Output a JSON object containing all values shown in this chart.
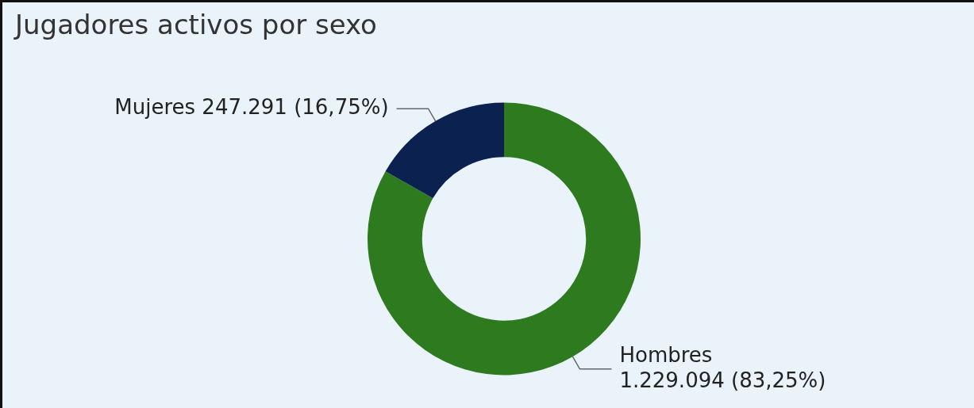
{
  "chart_data": {
    "type": "donut",
    "title": "Jugadores activos por sexo",
    "categories": [
      "Hombres",
      "Mujeres"
    ],
    "values": [
      1229094,
      247291
    ],
    "colors": [
      "#2e7a1f",
      "#0b2150"
    ],
    "value_labels": [
      "1.229.094 (83,25%)",
      "247.291 (16,75%)"
    ],
    "legend": false
  }
}
